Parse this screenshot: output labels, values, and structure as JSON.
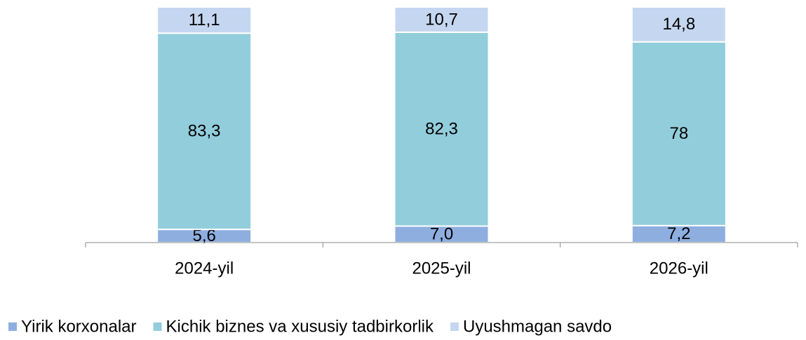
{
  "chart_data": {
    "type": "stacked_bar",
    "categories": [
      "2024-yil",
      "2025-yil",
      "2026-yil"
    ],
    "series": [
      {
        "name": "Yirik korxonalar",
        "color": "#8eaee0",
        "values": [
          5.6,
          7.0,
          7.2
        ],
        "value_labels": [
          "5,6",
          "7,0",
          "7,2"
        ]
      },
      {
        "name": "Kichik biznes va xususiy tadbirkorlik",
        "color": "#92cddc",
        "values": [
          83.3,
          82.3,
          78
        ],
        "value_labels": [
          "83,3",
          "82,3",
          "78"
        ]
      },
      {
        "name": "Uyushmagan savdo",
        "color": "#c5d6f0",
        "values": [
          11.1,
          10.7,
          14.8
        ],
        "value_labels": [
          "11,1",
          "10,7",
          "14,8"
        ]
      }
    ],
    "ylim": [
      0,
      100
    ],
    "legend": "bottom"
  }
}
